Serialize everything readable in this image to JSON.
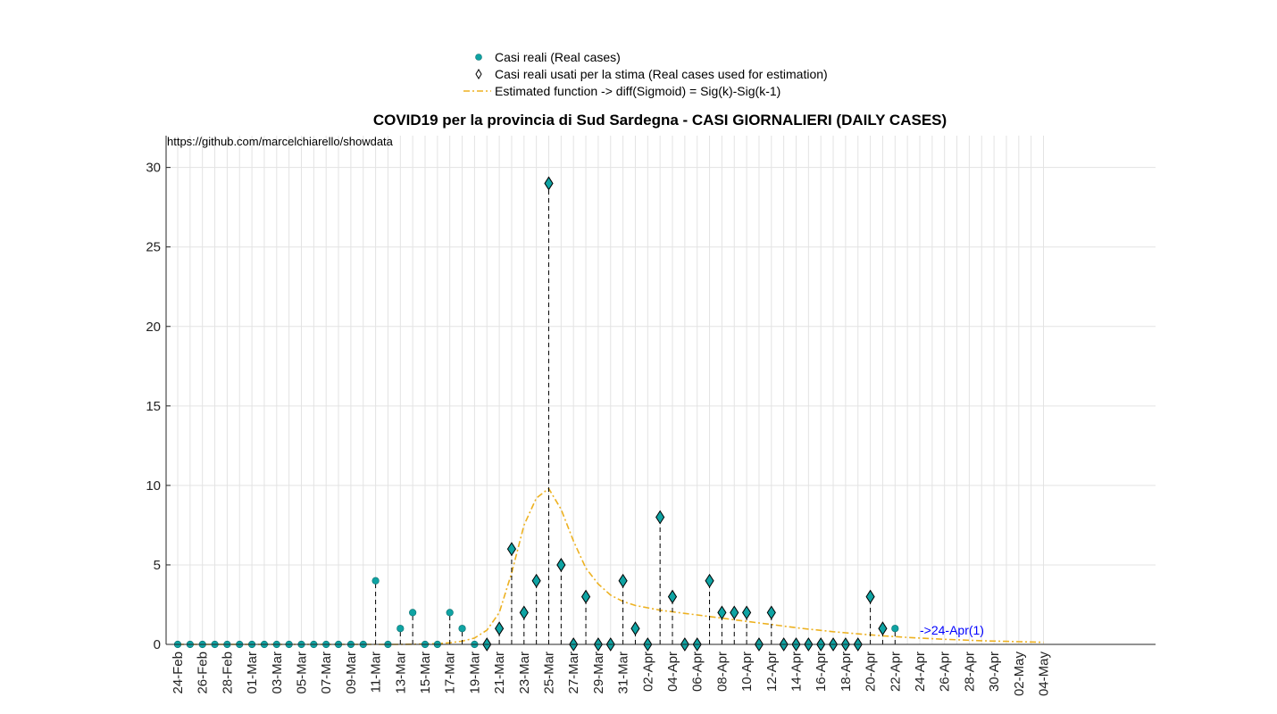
{
  "chart_data": {
    "type": "line",
    "title": "COVID19 per la provincia di Sud Sardegna - CASI GIORNALIERI (DAILY CASES)",
    "annotation": "https://github.com/marcelchiarello/showdata",
    "last_point_label": "->24-Apr(1)",
    "ylim": [
      0,
      32
    ],
    "yticks": [
      0,
      5,
      10,
      15,
      20,
      25,
      30
    ],
    "grid": true,
    "legend_position": "top-center",
    "x_dates": [
      "24-Feb",
      "25-Feb",
      "26-Feb",
      "27-Feb",
      "28-Feb",
      "29-Feb",
      "01-Mar",
      "02-Mar",
      "03-Mar",
      "04-Mar",
      "05-Mar",
      "06-Mar",
      "07-Mar",
      "08-Mar",
      "09-Mar",
      "10-Mar",
      "11-Mar",
      "12-Mar",
      "13-Mar",
      "14-Mar",
      "15-Mar",
      "16-Mar",
      "17-Mar",
      "18-Mar",
      "19-Mar",
      "20-Mar",
      "21-Mar",
      "22-Mar",
      "23-Mar",
      "24-Mar",
      "25-Mar",
      "26-Mar",
      "27-Mar",
      "28-Mar",
      "29-Mar",
      "30-Mar",
      "31-Mar",
      "01-Apr",
      "02-Apr",
      "03-Apr",
      "04-Apr",
      "05-Apr",
      "06-Apr",
      "07-Apr",
      "08-Apr",
      "09-Apr",
      "10-Apr",
      "11-Apr",
      "12-Apr",
      "13-Apr",
      "14-Apr",
      "15-Apr",
      "16-Apr",
      "17-Apr",
      "18-Apr",
      "19-Apr",
      "20-Apr",
      "21-Apr",
      "22-Apr",
      "23-Apr",
      "24-Apr",
      "25-Apr",
      "26-Apr",
      "27-Apr",
      "28-Apr",
      "29-Apr",
      "30-Apr",
      "01-May",
      "02-May",
      "03-May",
      "04-May"
    ],
    "x_tick_labels": [
      "24-Feb",
      "26-Feb",
      "28-Feb",
      "01-Mar",
      "03-Mar",
      "05-Mar",
      "07-Mar",
      "09-Mar",
      "11-Mar",
      "13-Mar",
      "15-Mar",
      "17-Mar",
      "19-Mar",
      "21-Mar",
      "23-Mar",
      "25-Mar",
      "27-Mar",
      "29-Mar",
      "31-Mar",
      "02-Apr",
      "04-Apr",
      "06-Apr",
      "08-Apr",
      "10-Apr",
      "12-Apr",
      "14-Apr",
      "16-Apr",
      "18-Apr",
      "20-Apr",
      "22-Apr",
      "24-Apr",
      "26-Apr",
      "28-Apr",
      "30-Apr",
      "02-May",
      "04-May"
    ],
    "series": [
      {
        "name": "Casi reali (Real cases)",
        "marker": "circle",
        "color": "#0fa3a3",
        "values": [
          0,
          0,
          0,
          0,
          0,
          0,
          0,
          0,
          0,
          0,
          0,
          0,
          0,
          0,
          0,
          0,
          4,
          0,
          1,
          2,
          0,
          0,
          2,
          1,
          0,
          0,
          1,
          6,
          2,
          4,
          29,
          5,
          0,
          3,
          0,
          0,
          4,
          1,
          0,
          8,
          3,
          0,
          0,
          4,
          2,
          2,
          2,
          0,
          2,
          0,
          0,
          0,
          0,
          0,
          0,
          0,
          3,
          1,
          1
        ]
      },
      {
        "name": "Casi reali usati per la stima (Real cases used for estimation)",
        "marker": "diamond",
        "color": "#000000",
        "start_index": 25,
        "end_index": 57
      },
      {
        "name": "Estimated function -> diff(Sigmoid) = Sig(k)-Sig(k-1)",
        "style": "dash-dot",
        "color": "#edb120",
        "values": [
          0,
          0,
          0,
          0,
          0,
          0,
          0,
          0,
          0,
          0,
          0,
          0,
          0,
          0,
          0,
          0,
          0,
          0,
          0,
          0.01,
          0.02,
          0.05,
          0.1,
          0.2,
          0.4,
          0.9,
          2.0,
          4.5,
          7.5,
          9.2,
          9.8,
          8.5,
          6.5,
          4.8,
          3.8,
          3.1,
          2.7,
          2.45,
          2.3,
          2.15,
          2.05,
          1.95,
          1.85,
          1.75,
          1.65,
          1.55,
          1.45,
          1.35,
          1.25,
          1.15,
          1.05,
          0.96,
          0.88,
          0.8,
          0.73,
          0.66,
          0.6,
          0.54,
          0.49,
          0.44,
          0.4,
          0.36,
          0.32,
          0.29,
          0.26,
          0.23,
          0.21,
          0.19,
          0.17,
          0.15,
          0.13
        ]
      }
    ]
  },
  "colors": {
    "marker_fill": "#0fa3a3",
    "curve": "#edb120",
    "grid": "#e3e3e3",
    "annotation_blue": "#0000ff"
  }
}
